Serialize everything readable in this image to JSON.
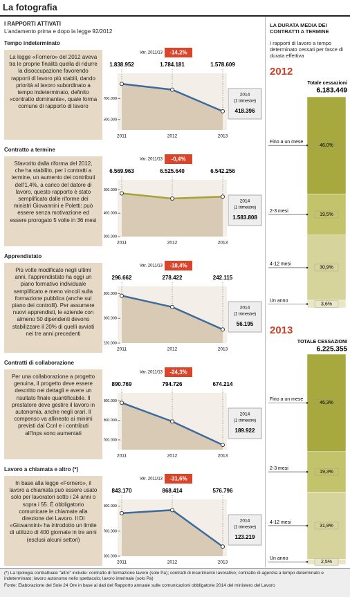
{
  "header": {
    "title": "La fotografia",
    "left_title": "I RAPPORTI ATTIVATI",
    "left_subtitle": "L'andamento prima e dopo la legge 92/2012",
    "right_title": "LA DURATA MEDIA DEI CONTRATTI A TERMINE",
    "right_subtitle": "I rapporti di lavoro a tempo determinato cessati per fasce di durata effettiva"
  },
  "chart_data": [
    {
      "type": "line",
      "title": "Tempo indeterminato",
      "annotation": "La legge «Fornero» del 2012 aveva tra le proprie finalità quella di ridurre la disoccupazione favorendo rapporti di lavoro più stabili, dando priorità al lavoro subordinato a tempo indeterminato, definito «contratto dominante», quale forma comune di rapporto di lavoro",
      "categories": [
        "2011",
        "2012",
        "2013"
      ],
      "values": [
        1838952,
        1784181,
        1578609
      ],
      "value_labels": [
        "1.838.952",
        "1.784.181",
        "1.578.609"
      ],
      "color": "#3f6b9c",
      "ylim": [
        1400000,
        1900000
      ],
      "yticks": [
        {
          "value": 1500000,
          "label": "1.500.000"
        },
        {
          "value": 1700000,
          "label": "1.700.000"
        }
      ],
      "change": {
        "label": "Var. 2011/13",
        "value": -14.2,
        "value_label": "-14,2%"
      },
      "extra": {
        "year": "2014",
        "note": "(1 trimestre)",
        "value": 418396,
        "value_label": "418.396"
      }
    },
    {
      "type": "line",
      "title": "Contratto a termine",
      "annotation": "Sfavorito dalla riforma del 2012, che ha stabilito, per i contratti a termine, un aumento dei contributi dell'1,4%, a carico del datore di lavoro, questo rapporto è stato semplificato dalle riforme dei ministri Giovannini e Poletti: può essere senza motivazione ed essere prorogato 5 volte in 36 mesi",
      "categories": [
        "2011",
        "2012",
        "2013"
      ],
      "values": [
        6569963,
        6525640,
        6542256
      ],
      "value_labels": [
        "6.569.963",
        "6.525.640",
        "6.542.256"
      ],
      "color": "#a5a335",
      "ylim": [
        6200000,
        6650000
      ],
      "yticks": [
        {
          "value": 6200000,
          "label": "6.200.000"
        },
        {
          "value": 6400000,
          "label": "6.400.000"
        },
        {
          "value": 6600000,
          "label": "6.600.000"
        }
      ],
      "change": {
        "label": "Var. 2011/13",
        "value": -0.4,
        "value_label": "-0,4%"
      },
      "extra": {
        "year": "2014",
        "note": "(1 trimestre)",
        "value": 1583808,
        "value_label": "1.583.808"
      }
    },
    {
      "type": "line",
      "title": "Apprendistato",
      "annotation": "Più volte modificato negli ultimi anni, l'apprendistato ha oggi un piano formativo individuale semplificato e meno vincoli sulla formazione pubblica (anche sul piano dei controlli). Per assumere nuovi apprendisti, le aziende con almeno 50 dipendenti devono stabilizzare il 20% di quelli avviati nei tre anni precedenti",
      "categories": [
        "2011",
        "2012",
        "2013"
      ],
      "values": [
        296662,
        278422,
        242115
      ],
      "value_labels": [
        "296.662",
        "278.422",
        "242.115"
      ],
      "color": "#3f6b9c",
      "ylim": [
        220000,
        305000
      ],
      "yticks": [
        {
          "value": 220000,
          "label": "220.000"
        },
        {
          "value": 260000,
          "label": "260.000"
        },
        {
          "value": 300000,
          "label": "300.000"
        }
      ],
      "change": {
        "label": "Var. 2011/13",
        "value": -18.4,
        "value_label": "-18,4%"
      },
      "extra": {
        "year": "2014",
        "note": "(1 trimestre)",
        "value": 56195,
        "value_label": "56.195"
      }
    },
    {
      "type": "line",
      "title": "Contratti di collaborazione",
      "annotation": "Per una collaborazione a progetto genuina, il progetto deve essere descritto nei dettagli e avere un risultato finale quantificabile. Il prestatore deve gestire il lavoro in autonomia, anche negli orari. Il compenso va allineato ai minimi previsti dai Ccnl e i contributi all'Inps sono aumentati",
      "categories": [
        "2011",
        "2012",
        "2013"
      ],
      "values": [
        890769,
        794726,
        674214
      ],
      "value_labels": [
        "890.769",
        "794.726",
        "674.214"
      ],
      "color": "#3f6b9c",
      "ylim": [
        650000,
        920000
      ],
      "yticks": [
        {
          "value": 700000,
          "label": "700.000"
        },
        {
          "value": 800000,
          "label": "800.000"
        },
        {
          "value": 900000,
          "label": "900.000"
        }
      ],
      "change": {
        "label": "Var. 2011/13",
        "value": -24.3,
        "value_label": "-24,3%"
      },
      "extra": {
        "year": "2014",
        "note": "(1 trimestre)",
        "value": 189922,
        "value_label": "189.922"
      }
    },
    {
      "type": "line",
      "title": "Lavoro a chiamata e altro (*)",
      "annotation": "In base alla legge «Fornero», il lavoro a chiamata può essere usato solo per lavoratori sotto i 24 anni o sopra i 55. È obbligatorio comunicare le chiamate alla direzione del Lavoro. Il Dl «Giovannini» ha introdotto un limite di utilizzo di 400 giornate in tre anni (esclusi alcuni settori)",
      "categories": [
        "2011",
        "2012",
        "2013"
      ],
      "values": [
        843170,
        868414,
        576796
      ],
      "value_labels": [
        "843.170",
        "868.414",
        "576.796"
      ],
      "color": "#3f6b9c",
      "ylim": [
        500000,
        920000
      ],
      "yticks": [
        {
          "value": 500000,
          "label": "500.000"
        },
        {
          "value": 700000,
          "label": "700.000"
        },
        {
          "value": 900000,
          "label": "900.000"
        }
      ],
      "change": {
        "label": "Var. 2011/13",
        "value": -31.6,
        "value_label": "-31,6%"
      },
      "extra": {
        "year": "2014",
        "note": "(1 trimestre)",
        "value": 123219,
        "value_label": "123.219"
      }
    },
    {
      "type": "stacked_bar",
      "year": "2012",
      "total_label": "Totale cessazioni",
      "total": 6183449,
      "total_value_label": "6.183.449",
      "categories": [
        "Fino a un mese",
        "2-3 mesi",
        "4-12 mesi",
        "Un anno"
      ],
      "values": [
        46.0,
        19.5,
        30.9,
        3.6
      ],
      "value_labels": [
        "46,0%",
        "19,5%",
        "30,9%",
        "3,6%"
      ],
      "colors": [
        "#a7a93f",
        "#c3c36c",
        "#d6d39b",
        "#e9e6c6"
      ]
    },
    {
      "type": "stacked_bar",
      "year": "2013",
      "total_label": "TOTALE CESSAZIONI",
      "total": 6225355,
      "total_value_label": "6.225.355",
      "categories": [
        "Fino a un mese",
        "2-3 mesi",
        "4-12 mesi",
        "Un anno"
      ],
      "values": [
        46.3,
        19.3,
        31.9,
        2.5
      ],
      "value_labels": [
        "46,3%",
        "19,3%",
        "31,9%",
        "2,5%"
      ],
      "colors": [
        "#a7a93f",
        "#c3c36c",
        "#d6d39b",
        "#e9e6c6"
      ]
    }
  ],
  "footnote": "(*) La tipologia contrattuale \"altro\" include: contratto di formazione lavoro (solo Pa); contratti di inserimento lavorativo; contratto di agenzia a tempo determinato e indeterminato; lavoro autonomo nello spettacolo; lavoro interinale (solo Pa)",
  "source": "Fonte: Elaborazione del Sole 24 Ore in base ai dati del Rapporto annuale sulle comunicazioni obbligatorie 2014 del ministero del Lavoro"
}
